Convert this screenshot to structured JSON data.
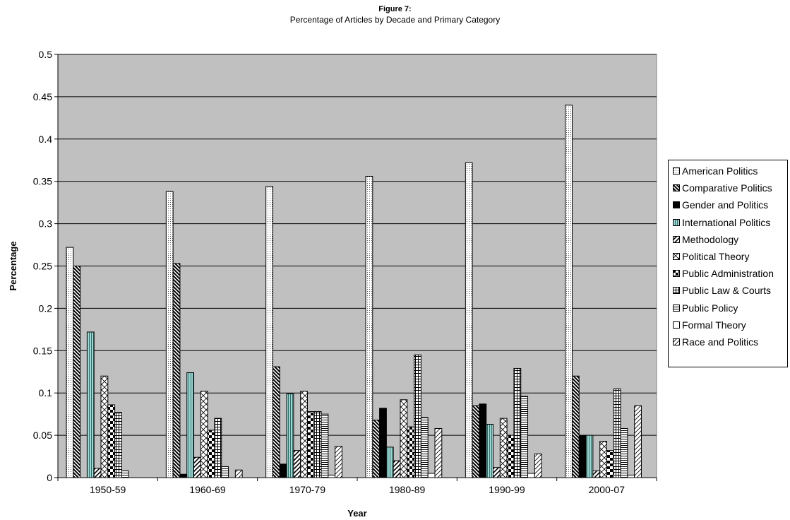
{
  "chart_data": {
    "type": "bar",
    "title": "Figure 7:",
    "subtitle": "Percentage of Articles by Decade and Primary Category",
    "xlabel": "Year",
    "ylabel": "Percentage",
    "ylim": [
      0,
      0.5
    ],
    "yticks": [
      "0",
      "0.05",
      "0.1",
      "0.15",
      "0.2",
      "0.25",
      "0.3",
      "0.35",
      "0.4",
      "0.45",
      "0.5"
    ],
    "grid": true,
    "legend_position": "right",
    "plot_background": "#c0c0c0",
    "categories": [
      "1950-59",
      "1960-69",
      "1970-79",
      "1980-89",
      "1990-99",
      "2000-07"
    ],
    "series": [
      {
        "name": "American Politics",
        "pattern": "dots",
        "values": [
          0.272,
          0.338,
          0.344,
          0.356,
          0.372,
          0.44
        ]
      },
      {
        "name": "Comparative Politics",
        "pattern": "diagonal-dense",
        "values": [
          0.25,
          0.253,
          0.131,
          0.068,
          0.085,
          0.12
        ]
      },
      {
        "name": "Gender and Politics",
        "pattern": "solid-black",
        "values": [
          0,
          0.004,
          0.016,
          0.082,
          0.087,
          0.05
        ]
      },
      {
        "name": "International Politics",
        "pattern": "vertical-teal",
        "values": [
          0.172,
          0.124,
          0.099,
          0.036,
          0.063,
          0.05
        ]
      },
      {
        "name": "Methodology",
        "pattern": "diagonal-wide",
        "values": [
          0.011,
          0.024,
          0.032,
          0.02,
          0.012,
          0.008
        ]
      },
      {
        "name": "Political Theory",
        "pattern": "diagonal-cross",
        "values": [
          0.12,
          0.102,
          0.102,
          0.092,
          0.07,
          0.043
        ]
      },
      {
        "name": "Public Administration",
        "pattern": "checker",
        "values": [
          0.086,
          0.056,
          0.078,
          0.06,
          0.05,
          0.032
        ]
      },
      {
        "name": "Public Law & Courts",
        "pattern": "grid",
        "values": [
          0.077,
          0.07,
          0.078,
          0.145,
          0.129,
          0.105
        ]
      },
      {
        "name": "Public Policy",
        "pattern": "horizontal",
        "values": [
          0.008,
          0.013,
          0.075,
          0.071,
          0.096,
          0.058
        ]
      },
      {
        "name": "Formal Theory",
        "pattern": "white",
        "values": [
          0,
          0,
          0.003,
          0.005,
          0.005,
          0.003
        ]
      },
      {
        "name": "Race and Politics",
        "pattern": "diagonal-light",
        "values": [
          0,
          0.009,
          0.037,
          0.058,
          0.028,
          0.085
        ]
      }
    ]
  }
}
